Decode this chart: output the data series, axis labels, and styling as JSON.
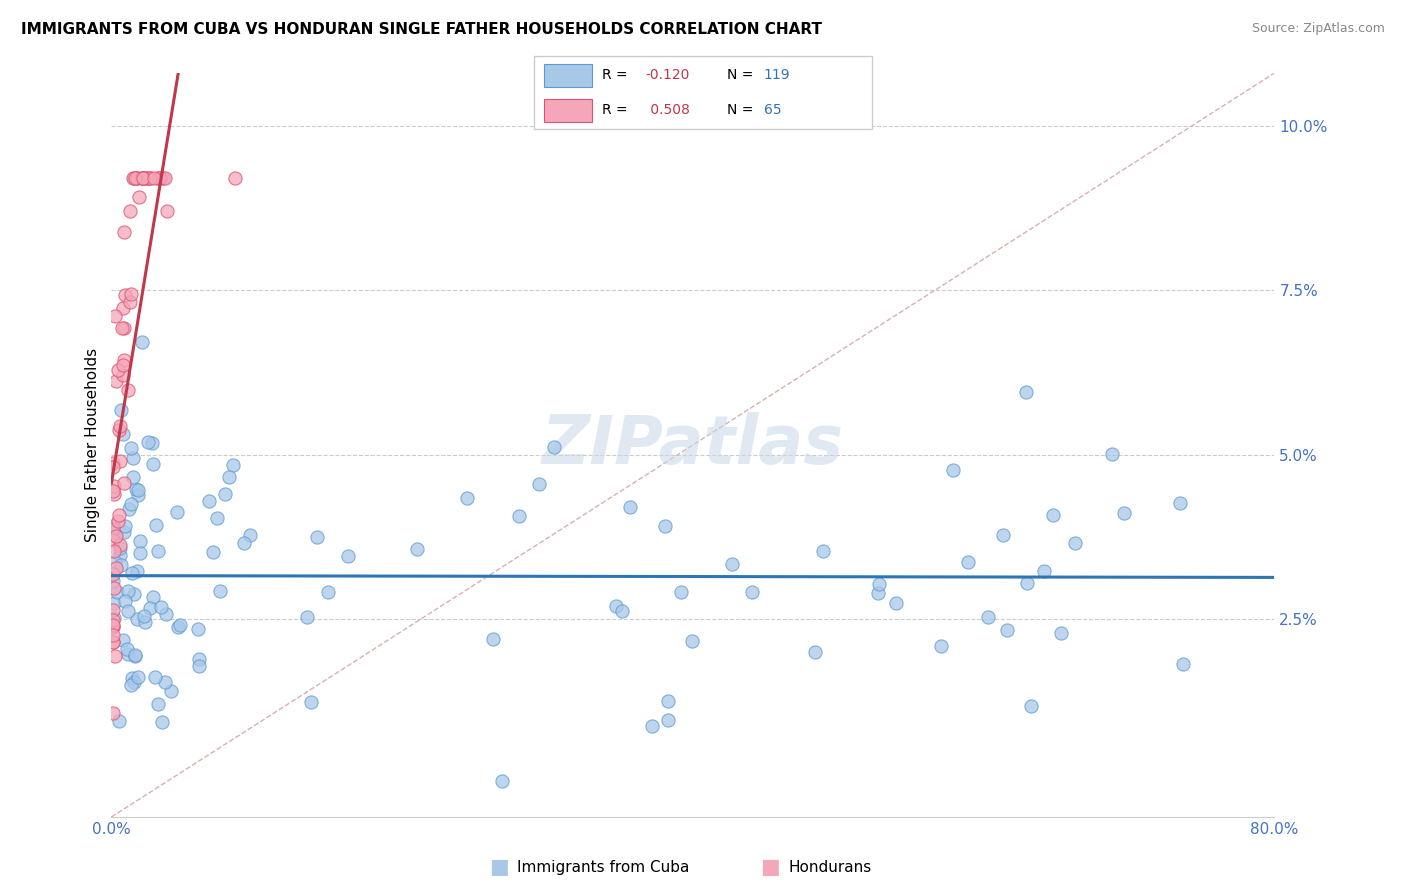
{
  "title": "IMMIGRANTS FROM CUBA VS HONDURAN SINGLE FATHER HOUSEHOLDS CORRELATION CHART",
  "source": "Source: ZipAtlas.com",
  "ylabel_label": "Single Father Households",
  "ylabel_ticks": [
    "2.5%",
    "5.0%",
    "7.5%",
    "10.0%"
  ],
  "ylabel_values": [
    0.025,
    0.05,
    0.075,
    0.1
  ],
  "xmin": 0.0,
  "xmax": 0.8,
  "ymin": -0.005,
  "ymax": 0.108,
  "color_cuba": "#a8c8e8",
  "color_cuba_edge": "#5b9bd5",
  "color_cuba_line": "#2e75b6",
  "color_honduran": "#f4a7b9",
  "color_honduran_edge": "#e05070",
  "color_honduran_line": "#c0384a",
  "color_diagonal": "#d8b0b0",
  "watermark": "ZIPatlas",
  "legend_text1a": "R = ",
  "legend_val1a": "-0.120",
  "legend_text1b": "N = ",
  "legend_val1b": "119",
  "legend_text2a": "R = ",
  "legend_val2a": "0.508",
  "legend_text2b": "N = ",
  "legend_val2b": "65"
}
